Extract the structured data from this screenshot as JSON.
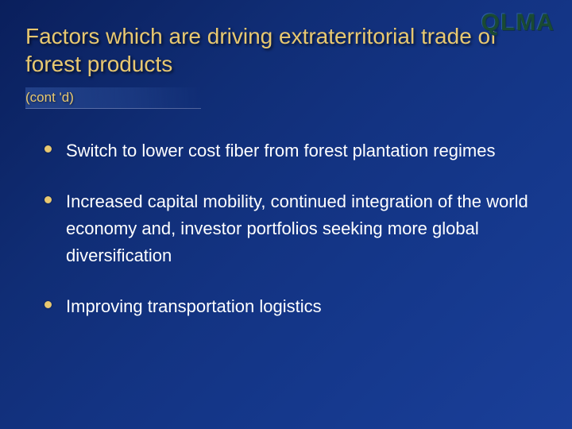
{
  "brand": {
    "logo": "QLMA"
  },
  "header": {
    "title": "Factors which are driving extraterritorial trade of forest products",
    "subtitle": "(cont 'd)"
  },
  "bullets": [
    {
      "text": "Switch to lower cost fiber from forest plantation regimes"
    },
    {
      "text": "Increased capital mobility, continued integration of the world economy and, investor portfolios seeking more global diversification"
    },
    {
      "text": "Improving transportation logistics"
    }
  ],
  "style": {
    "background_gradient": [
      "#0a1f5c",
      "#1a3f99"
    ],
    "accent_color": "#e8c870",
    "text_color": "#ffffff",
    "logo_color": "#1a4a33",
    "title_fontsize": 28,
    "bullet_fontsize": 22,
    "subtitle_fontsize": 17,
    "bullet_dot_size": 9,
    "slide_width": 720,
    "slide_height": 540
  }
}
